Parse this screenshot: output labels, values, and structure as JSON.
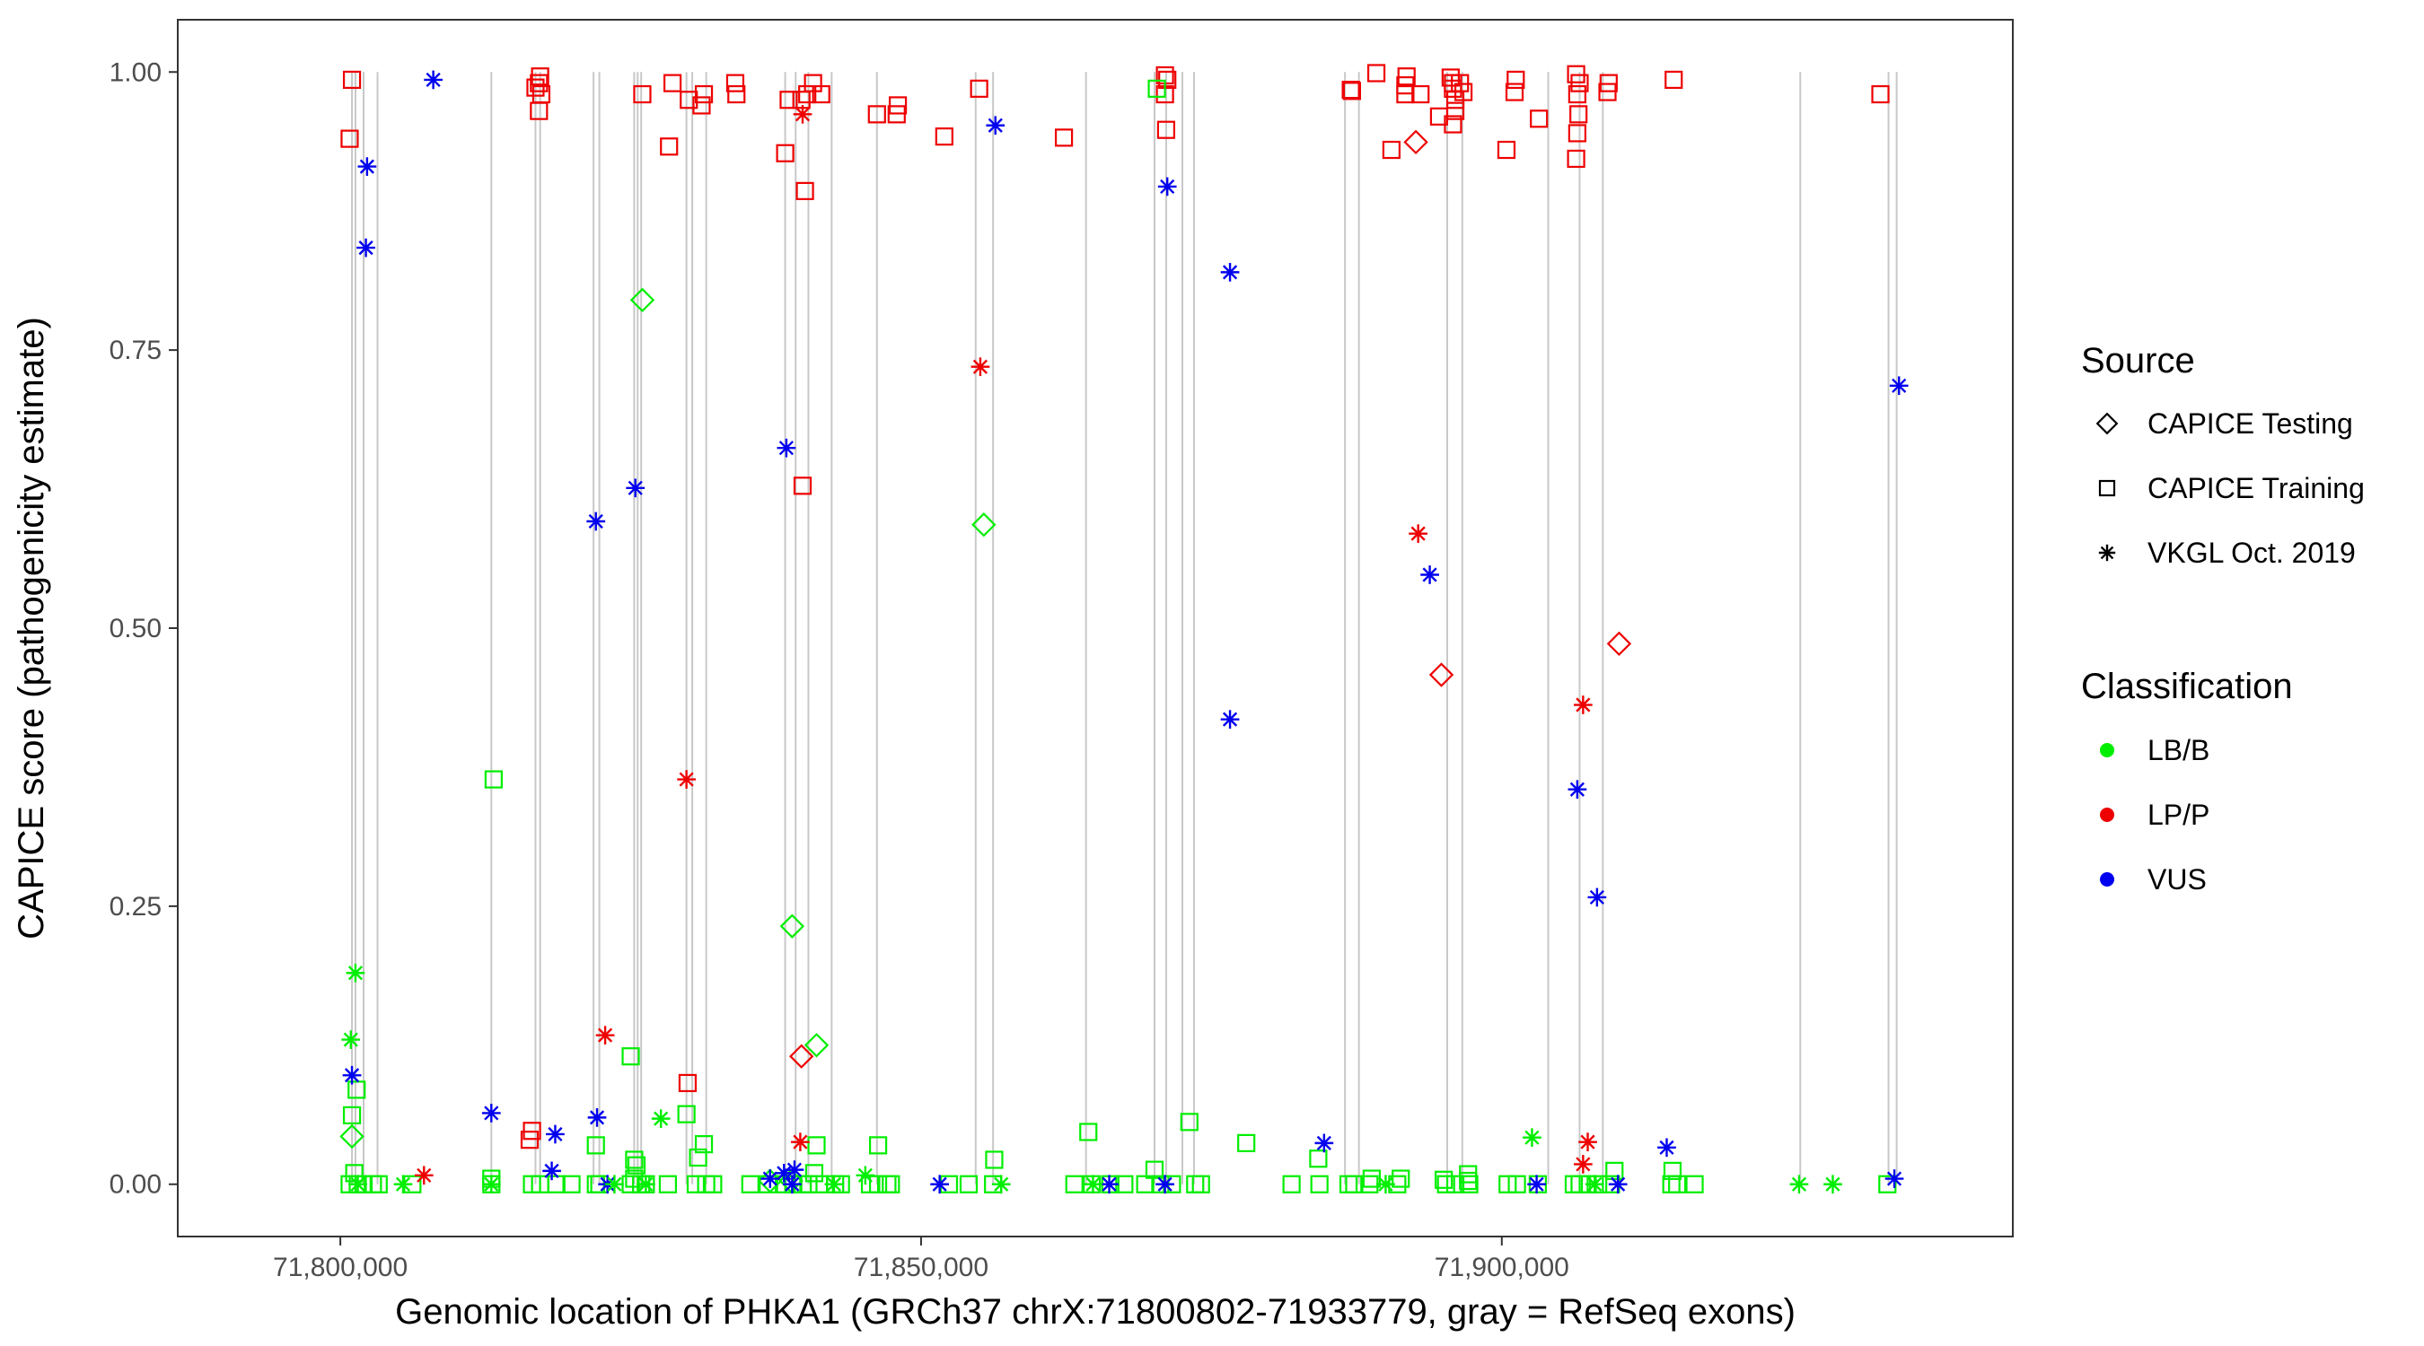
{
  "chart_data": {
    "type": "scatter",
    "title": "",
    "xlabel": "Genomic location of PHKA1 (GRCh37 chrX:71800802-71933779, gray = RefSeq exons)",
    "ylabel": "CAPICE score (pathogenicity estimate)",
    "xlim": [
      71786000,
      71944000
    ],
    "ylim": [
      -0.047,
      1.047
    ],
    "x_ticks": [
      {
        "value": 71800000,
        "label": "71,800,000"
      },
      {
        "value": 71850000,
        "label": "71,850,000"
      },
      {
        "value": 71900000,
        "label": "71,900,000"
      }
    ],
    "y_ticks": [
      {
        "value": 0.0,
        "label": "0.00"
      },
      {
        "value": 0.25,
        "label": "0.25"
      },
      {
        "value": 0.5,
        "label": "0.50"
      },
      {
        "value": 0.75,
        "label": "0.75"
      },
      {
        "value": 1.0,
        "label": "1.00"
      }
    ],
    "exons": [
      71801000,
      71801300,
      71802000,
      71803200,
      71813000,
      71816800,
      71817200,
      71821800,
      71822300,
      71825300,
      71825600,
      71825900,
      71829800,
      71830300,
      71831500,
      71838300,
      71839200,
      71840300,
      71842300,
      71846200,
      71854700,
      71856200,
      71864200,
      71870100,
      71871100,
      71872500,
      71873500,
      71886500,
      71887700,
      71895300,
      71896600,
      71904000,
      71906700,
      71908700,
      71925700,
      71933300,
      71934000
    ],
    "legend": {
      "source_title": "Source",
      "source_items": [
        {
          "label": "CAPICE Testing",
          "shape": "diamond"
        },
        {
          "label": "CAPICE Training",
          "shape": "square"
        },
        {
          "label": "VKGL Oct. 2019",
          "shape": "asterisk"
        }
      ],
      "class_title": "Classification",
      "class_items": [
        {
          "label": "LB/B",
          "color": "#00ee00"
        },
        {
          "label": "LP/P",
          "color": "#ee0000"
        },
        {
          "label": "VUS",
          "color": "#0000ee"
        }
      ]
    },
    "series": [
      {
        "name": "CAPICE Training / LP/P",
        "shape": "square",
        "color": "#ee0000",
        "points": [
          [
            71801000,
            0.993
          ],
          [
            71800800,
            0.94
          ],
          [
            71816800,
            0.986
          ],
          [
            71817100,
            0.99
          ],
          [
            71817200,
            0.996
          ],
          [
            71817300,
            0.98
          ],
          [
            71817100,
            0.965
          ],
          [
            71826000,
            0.98
          ],
          [
            71828600,
            0.99
          ],
          [
            71830000,
            0.975
          ],
          [
            71831300,
            0.98
          ],
          [
            71831100,
            0.97
          ],
          [
            71828300,
            0.933
          ],
          [
            71834000,
            0.99
          ],
          [
            71834100,
            0.98
          ],
          [
            71838600,
            0.975
          ],
          [
            71839700,
            0.975
          ],
          [
            71840200,
            0.98
          ],
          [
            71840700,
            0.99
          ],
          [
            71841400,
            0.98
          ],
          [
            71838300,
            0.927
          ],
          [
            71840000,
            0.893
          ],
          [
            71839800,
            0.628
          ],
          [
            71846200,
            0.962
          ],
          [
            71848000,
            0.97
          ],
          [
            71847900,
            0.962
          ],
          [
            71852000,
            0.942
          ],
          [
            71855000,
            0.985
          ],
          [
            71862300,
            0.941
          ],
          [
            71871200,
            0.993
          ],
          [
            71871000,
            0.98
          ],
          [
            71871100,
            0.948
          ],
          [
            71871000,
            0.997
          ],
          [
            71887100,
            0.983
          ],
          [
            71887000,
            0.984
          ],
          [
            71889200,
            0.999
          ],
          [
            71890500,
            0.93
          ],
          [
            71891700,
            0.988
          ],
          [
            71891700,
            0.98
          ],
          [
            71893000,
            0.98
          ],
          [
            71891800,
            0.996
          ],
          [
            71894600,
            0.96
          ],
          [
            71895600,
            0.995
          ],
          [
            71895800,
            0.99
          ],
          [
            71896000,
            0.975
          ],
          [
            71896400,
            0.99
          ],
          [
            71896700,
            0.982
          ],
          [
            71895800,
            0.953
          ],
          [
            71896000,
            0.965
          ],
          [
            71895800,
            0.985
          ],
          [
            71900400,
            0.93
          ],
          [
            71901200,
            0.993
          ],
          [
            71901100,
            0.982
          ],
          [
            71903200,
            0.958
          ],
          [
            71906400,
            0.998
          ],
          [
            71906700,
            0.99
          ],
          [
            71906500,
            0.98
          ],
          [
            71906600,
            0.962
          ],
          [
            71906500,
            0.945
          ],
          [
            71906400,
            0.922
          ],
          [
            71909200,
            0.99
          ],
          [
            71909100,
            0.982
          ],
          [
            71914800,
            0.993
          ],
          [
            71932600,
            0.98
          ],
          [
            71829900,
            0.091
          ],
          [
            71816500,
            0.048
          ],
          [
            71816300,
            0.04
          ]
        ]
      },
      {
        "name": "CAPICE Training / LB/B",
        "shape": "square",
        "color": "#00ee00",
        "points": [
          [
            71813200,
            0.364
          ],
          [
            71825000,
            0.115
          ],
          [
            71801000,
            0.062
          ],
          [
            71801400,
            0.085
          ],
          [
            71829800,
            0.063
          ],
          [
            71830800,
            0.024
          ],
          [
            71831300,
            0.036
          ],
          [
            71822000,
            0.035
          ],
          [
            71825300,
            0.022
          ],
          [
            71825500,
            0.017
          ],
          [
            71825300,
            0.005
          ],
          [
            71841000,
            0.035
          ],
          [
            71846300,
            0.035
          ],
          [
            71856300,
            0.022
          ],
          [
            71864400,
            0.047
          ],
          [
            71870300,
            0.985
          ],
          [
            71870100,
            0.013
          ],
          [
            71873100,
            0.056
          ],
          [
            71878000,
            0.037
          ],
          [
            71884200,
            0.023
          ],
          [
            71895000,
            0.004
          ],
          [
            71897100,
            0.009
          ],
          [
            71909700,
            0.012
          ],
          [
            71914700,
            0.012
          ],
          [
            71801200,
            0.01
          ],
          [
            71800800,
            0.0
          ],
          [
            71801500,
            0.0
          ],
          [
            71802000,
            0.0
          ],
          [
            71802800,
            0.0
          ],
          [
            71803300,
            0.0
          ],
          [
            71806200,
            0.0
          ],
          [
            71813000,
            0.005
          ],
          [
            71813000,
            0.0
          ],
          [
            71816500,
            0.0
          ],
          [
            71817200,
            0.0
          ],
          [
            71818600,
            0.0
          ],
          [
            71819900,
            0.0
          ],
          [
            71822000,
            0.0
          ],
          [
            71822300,
            0.0
          ],
          [
            71825000,
            0.0
          ],
          [
            71825900,
            0.0
          ],
          [
            71826300,
            0.0
          ],
          [
            71828200,
            0.0
          ],
          [
            71830600,
            0.0
          ],
          [
            71831500,
            0.0
          ],
          [
            71832100,
            0.0
          ],
          [
            71835300,
            0.0
          ],
          [
            71836800,
            0.0
          ],
          [
            71838300,
            0.0
          ],
          [
            71839000,
            0.0
          ],
          [
            71839800,
            0.0
          ],
          [
            71840300,
            0.0
          ],
          [
            71840800,
            0.01
          ],
          [
            71841200,
            0.0
          ],
          [
            71842600,
            0.0
          ],
          [
            71843100,
            0.0
          ],
          [
            71845600,
            0.0
          ],
          [
            71846300,
            0.0
          ],
          [
            71847100,
            0.0
          ],
          [
            71847400,
            0.0
          ],
          [
            71852400,
            0.0
          ],
          [
            71854100,
            0.0
          ],
          [
            71856200,
            0.0
          ],
          [
            71863200,
            0.0
          ],
          [
            71864700,
            0.0
          ],
          [
            71866300,
            0.0
          ],
          [
            71867500,
            0.0
          ],
          [
            71869300,
            0.0
          ],
          [
            71870600,
            0.0
          ],
          [
            71871600,
            0.0
          ],
          [
            71873600,
            0.0
          ],
          [
            71874100,
            0.0
          ],
          [
            71881900,
            0.0
          ],
          [
            71884300,
            0.0
          ],
          [
            71886800,
            0.0
          ],
          [
            71887300,
            0.0
          ],
          [
            71888600,
            0.0
          ],
          [
            71888800,
            0.005
          ],
          [
            71891000,
            0.0
          ],
          [
            71891300,
            0.005
          ],
          [
            71895200,
            0.0
          ],
          [
            71896000,
            0.0
          ],
          [
            71897200,
            0.0
          ],
          [
            71897100,
            0.003
          ],
          [
            71900500,
            0.0
          ],
          [
            71901300,
            0.0
          ],
          [
            71903100,
            0.0
          ],
          [
            71906200,
            0.0
          ],
          [
            71906700,
            0.0
          ],
          [
            71907400,
            0.0
          ],
          [
            71908300,
            0.0
          ],
          [
            71909400,
            0.0
          ],
          [
            71914600,
            0.0
          ],
          [
            71915100,
            0.0
          ],
          [
            71916600,
            0.0
          ],
          [
            71933200,
            0.0
          ]
        ]
      },
      {
        "name": "CAPICE Testing / LP/P",
        "shape": "diamond",
        "color": "#ee0000",
        "points": [
          [
            71892600,
            0.937
          ],
          [
            71894800,
            0.458
          ],
          [
            71910100,
            0.486
          ],
          [
            71839700,
            0.115
          ]
        ]
      },
      {
        "name": "CAPICE Testing / LB/B",
        "shape": "diamond",
        "color": "#00ee00",
        "points": [
          [
            71826000,
            0.795
          ],
          [
            71855400,
            0.593
          ],
          [
            71838900,
            0.232
          ],
          [
            71841000,
            0.125
          ],
          [
            71801000,
            0.043
          ],
          [
            71838800,
            0.003
          ],
          [
            71837000,
            0.003
          ]
        ]
      },
      {
        "name": "VKGL Oct. 2019 / VUS",
        "shape": "asterisk",
        "color": "#0000ee",
        "points": [
          [
            71808000,
            0.993
          ],
          [
            71802300,
            0.915
          ],
          [
            71802200,
            0.842
          ],
          [
            71856400,
            0.952
          ],
          [
            71871200,
            0.897
          ],
          [
            71876600,
            0.82
          ],
          [
            71825400,
            0.626
          ],
          [
            71838400,
            0.662
          ],
          [
            71822000,
            0.596
          ],
          [
            71893800,
            0.548
          ],
          [
            71934200,
            0.718
          ],
          [
            71876600,
            0.418
          ],
          [
            71906500,
            0.355
          ],
          [
            71908200,
            0.258
          ],
          [
            71801000,
            0.098
          ],
          [
            71813000,
            0.064
          ],
          [
            71818500,
            0.045
          ],
          [
            71822100,
            0.06
          ],
          [
            71818200,
            0.012
          ],
          [
            71823000,
            0.0
          ],
          [
            71837000,
            0.005
          ],
          [
            71838200,
            0.01
          ],
          [
            71839100,
            0.013
          ],
          [
            71838900,
            0.0
          ],
          [
            71851600,
            0.0
          ],
          [
            71866200,
            0.0
          ],
          [
            71871000,
            0.0
          ],
          [
            71884700,
            0.037
          ],
          [
            71903000,
            0.0
          ],
          [
            71910000,
            0.0
          ],
          [
            71914200,
            0.033
          ],
          [
            71933800,
            0.005
          ]
        ]
      },
      {
        "name": "VKGL Oct. 2019 / LP/P",
        "shape": "asterisk",
        "color": "#ee0000",
        "points": [
          [
            71839800,
            0.962
          ],
          [
            71855100,
            0.735
          ],
          [
            71892800,
            0.585
          ],
          [
            71829800,
            0.364
          ],
          [
            71822800,
            0.134
          ],
          [
            71907000,
            0.431
          ],
          [
            71807200,
            0.008
          ],
          [
            71839600,
            0.038
          ],
          [
            71907400,
            0.038
          ],
          [
            71907000,
            0.018
          ]
        ]
      },
      {
        "name": "VKGL Oct. 2019 / LB/B",
        "shape": "asterisk",
        "color": "#00ee00",
        "points": [
          [
            71801300,
            0.19
          ],
          [
            71800900,
            0.13
          ],
          [
            71827600,
            0.059
          ],
          [
            71902600,
            0.042
          ],
          [
            71845200,
            0.008
          ],
          [
            71801500,
            0.0
          ],
          [
            71805400,
            0.0
          ],
          [
            71813000,
            0.0
          ],
          [
            71823600,
            0.0
          ],
          [
            71826300,
            0.0
          ],
          [
            71842500,
            0.0
          ],
          [
            71856900,
            0.0
          ],
          [
            71864800,
            0.0
          ],
          [
            71890000,
            0.0
          ],
          [
            71908000,
            0.0
          ],
          [
            71925600,
            0.0
          ],
          [
            71928500,
            0.0
          ]
        ]
      }
    ]
  }
}
